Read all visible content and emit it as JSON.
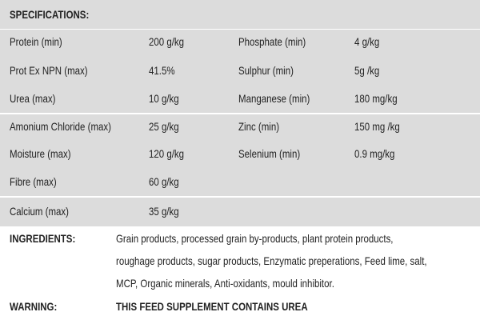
{
  "specifications": {
    "title": "SPECIFICATIONS:",
    "rows": [
      [
        "Protein (min)",
        "200 g/kg",
        "Phosphate (min)",
        "4 g/kg"
      ],
      [
        "Prot Ex NPN (max)",
        "41.5%",
        "Sulphur (min)",
        "5g /kg"
      ],
      [
        "Urea (max)",
        "10 g/kg",
        "Manganese (min)",
        "180 mg/kg"
      ],
      [
        "Amonium Chloride (max)",
        "25 g/kg",
        "Zinc (min)",
        "150 mg /kg"
      ],
      [
        "Moisture (max)",
        "120 g/kg",
        "Selenium (min)",
        "0.9 mg/kg"
      ],
      [
        "Fibre (max)",
        "60 g/kg"
      ],
      [
        "Calcium (max)",
        "35 g/kg"
      ]
    ]
  },
  "ingredients": {
    "label": "INGREDIENTS:",
    "lines": [
      "Grain products, processed grain by-products, plant protein products,",
      "roughage products, sugar products, Enzymatic preperations, Feed lime, salt,",
      "MCP, Organic minerals, Anti-oxidants, mould inhibitor."
    ]
  },
  "warning": {
    "label": "WARNING:",
    "text": "THIS FEED SUPPLEMENT CONTAINS UREA"
  }
}
